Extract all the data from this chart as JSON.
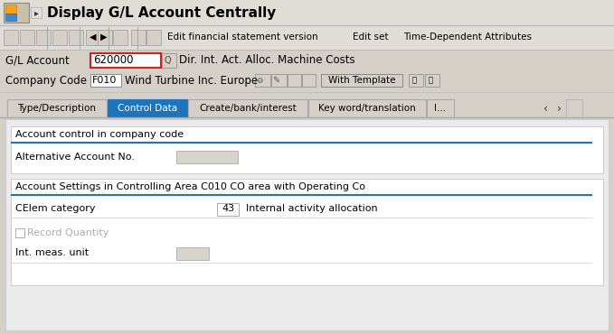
{
  "title": "Display G/L Account Centrally",
  "bg_color": "#d4d0c8",
  "title_bar_bg": "#e0ddd6",
  "toolbar_bg": "#e0ddd6",
  "white": "#ffffff",
  "blue_tab": "#1c75bc",
  "tab_active_bg": "#1c75bc",
  "tab_active_fg": "#ffffff",
  "tab_inactive_fg": "#000000",
  "section_line": "#1c75bc",
  "content_bg": "#ebebeb",
  "gl_account": "620000",
  "gl_account_desc": "Dir. Int. Act. Alloc. Machine Costs",
  "company_code": "F010",
  "company_name": "Wind Turbine Inc. Europe",
  "tabs": [
    "Type/Description",
    "Control Data",
    "Create/bank/interest",
    "Key word/translation",
    "I..."
  ],
  "active_tab": 1,
  "section1_title": "Account control in company code",
  "field1_label": "Alternative Account No.",
  "section2_title": "Account Settings in Controlling Area C010 CO area with Operating Co",
  "field2_label": "CElem category",
  "field2_value": "43",
  "field2_desc": "Internal activity allocation",
  "field3_label": "Record Quantity",
  "field4_label": "Int. meas. unit",
  "toolbar_text1": "Edit financial statement version",
  "toolbar_text2": "Edit set",
  "toolbar_text3": "Time-Dependent Attributes",
  "figw": 6.79,
  "figh": 3.7,
  "dpi": 100
}
